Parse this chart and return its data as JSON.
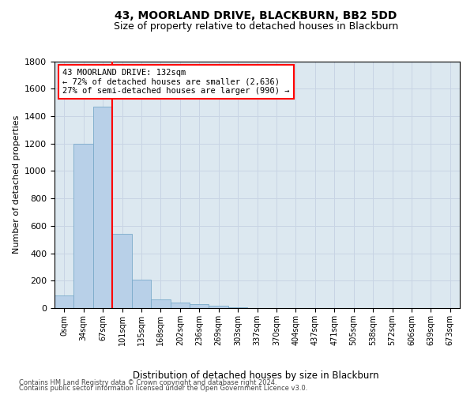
{
  "title1": "43, MOORLAND DRIVE, BLACKBURN, BB2 5DD",
  "title2": "Size of property relative to detached houses in Blackburn",
  "xlabel": "Distribution of detached houses by size in Blackburn",
  "ylabel": "Number of detached properties",
  "bar_color": "#b8d0e8",
  "bar_edge_color": "#7aaaca",
  "grid_color": "#c8d4e4",
  "background_color": "#dce8f0",
  "x_labels": [
    "0sqm",
    "34sqm",
    "67sqm",
    "101sqm",
    "135sqm",
    "168sqm",
    "202sqm",
    "236sqm",
    "269sqm",
    "303sqm",
    "337sqm",
    "370sqm",
    "404sqm",
    "437sqm",
    "471sqm",
    "505sqm",
    "538sqm",
    "572sqm",
    "606sqm",
    "639sqm",
    "673sqm"
  ],
  "bar_heights": [
    90,
    1200,
    1470,
    540,
    210,
    65,
    40,
    28,
    20,
    5,
    0,
    0,
    0,
    0,
    0,
    0,
    0,
    0,
    0,
    0,
    0
  ],
  "property_label": "43 MOORLAND DRIVE: 132sqm",
  "annotation_line1": "← 72% of detached houses are smaller (2,636)",
  "annotation_line2": "27% of semi-detached houses are larger (990) →",
  "red_line_index": 3,
  "ylim": [
    0,
    1800
  ],
  "yticks": [
    0,
    200,
    400,
    600,
    800,
    1000,
    1200,
    1400,
    1600,
    1800
  ],
  "footer1": "Contains HM Land Registry data © Crown copyright and database right 2024.",
  "footer2": "Contains public sector information licensed under the Open Government Licence v3.0."
}
